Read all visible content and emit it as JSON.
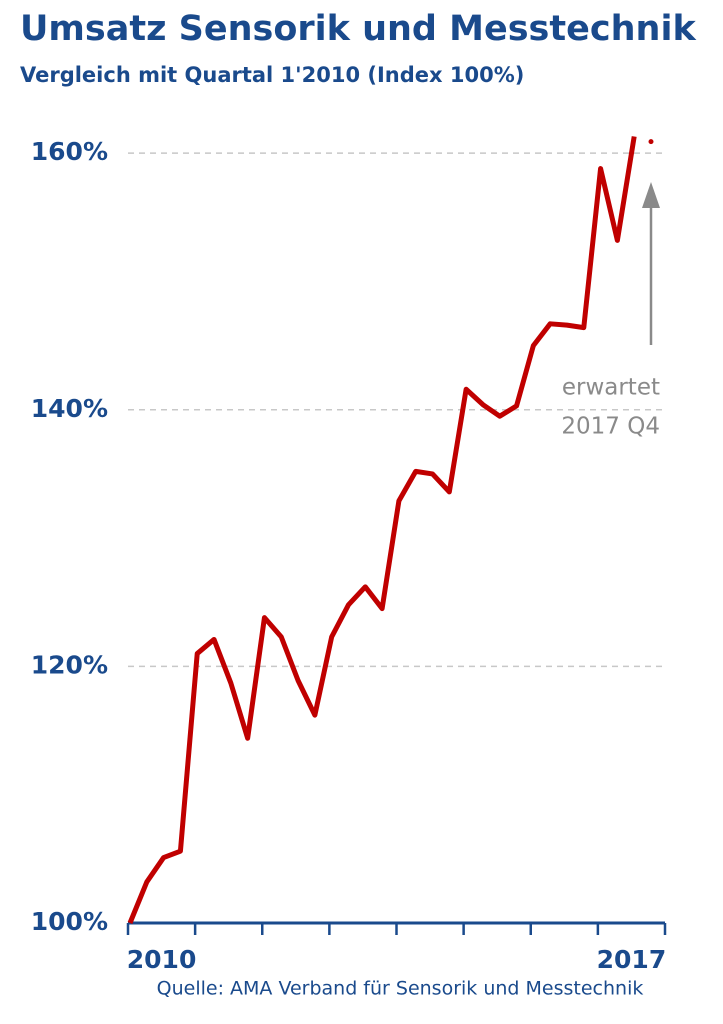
{
  "chart_data": {
    "type": "line",
    "title": "Umsatz Sensorik und Messtechnik",
    "subtitle": "Vergleich mit Quartal 1'2010  (Index 100%)",
    "categories": [
      null,
      null,
      null,
      null,
      null,
      null,
      null,
      null,
      null,
      null,
      null,
      null,
      null,
      null,
      null,
      null,
      null,
      null,
      null,
      null,
      null,
      null,
      null,
      null,
      null,
      null,
      null,
      null,
      null,
      null,
      null,
      null
    ],
    "x_groups": [
      "2010",
      null,
      null,
      null,
      null,
      null,
      null,
      "2017"
    ],
    "series": [
      {
        "color": "#c00000",
        "dashed": false,
        "values": [
          100,
          103.2,
          105.1,
          105.6,
          121.0,
          122.1,
          118.7,
          114.4,
          123.8,
          122.3,
          118.9,
          116.2,
          122.3,
          124.8,
          126.2,
          124.5,
          132.9,
          135.2,
          135.0,
          133.6,
          141.6,
          140.4,
          139.5,
          140.3,
          145.0,
          146.7,
          146.6,
          146.4,
          158.8,
          153.2,
          161.3,
          null
        ]
      },
      {
        "color": "#c00000",
        "dashed": true,
        "values": [
          null,
          null,
          null,
          null,
          null,
          null,
          null,
          null,
          null,
          null,
          null,
          null,
          null,
          null,
          null,
          null,
          null,
          null,
          null,
          null,
          null,
          null,
          null,
          null,
          null,
          null,
          null,
          null,
          null,
          null,
          null,
          160.9
        ]
      }
    ],
    "ylim": [
      100,
      162
    ],
    "yticks": [
      {
        "value": 100,
        "label": "100%"
      },
      {
        "value": 120,
        "label": "120%"
      },
      {
        "value": 140,
        "label": "140%"
      },
      {
        "value": 160,
        "label": "160%"
      }
    ],
    "grid": true,
    "annotation": [
      "erwartet",
      "2017  Q4"
    ],
    "source": "Quelle: AMA Verband für Sensorik und Messtechnik"
  }
}
